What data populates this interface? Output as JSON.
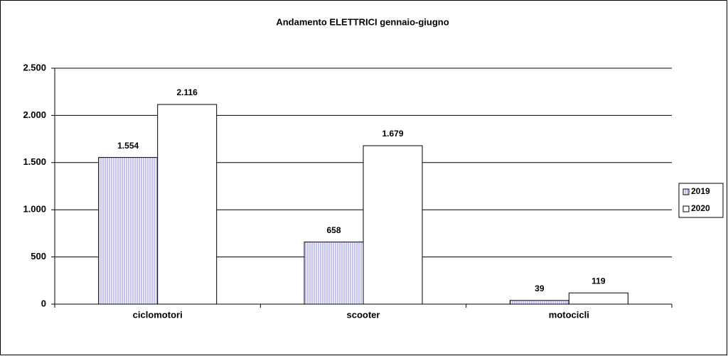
{
  "chart_data": {
    "type": "bar",
    "title": "Andamento ELETTRICI gennaio-giugno",
    "categories": [
      "ciclomotori",
      "scooter",
      "motocicli"
    ],
    "series": [
      {
        "name": "2019",
        "color": "#8080ff",
        "values": [
          1554,
          658,
          39
        ],
        "value_labels": [
          "1.554",
          "658",
          "39"
        ]
      },
      {
        "name": "2020",
        "color": "#ffffff",
        "values": [
          2116,
          1679,
          119
        ],
        "value_labels": [
          "2.116",
          "1.679",
          "119"
        ]
      }
    ],
    "ylim": [
      0,
      2500
    ],
    "yticks": [
      {
        "value": 0,
        "label": "0"
      },
      {
        "value": 500,
        "label": "500"
      },
      {
        "value": 1000,
        "label": "1.000"
      },
      {
        "value": 1500,
        "label": "1.500"
      },
      {
        "value": 2000,
        "label": "2.000"
      },
      {
        "value": 2500,
        "label": "2.500"
      }
    ],
    "grid": true,
    "legend": "right"
  }
}
